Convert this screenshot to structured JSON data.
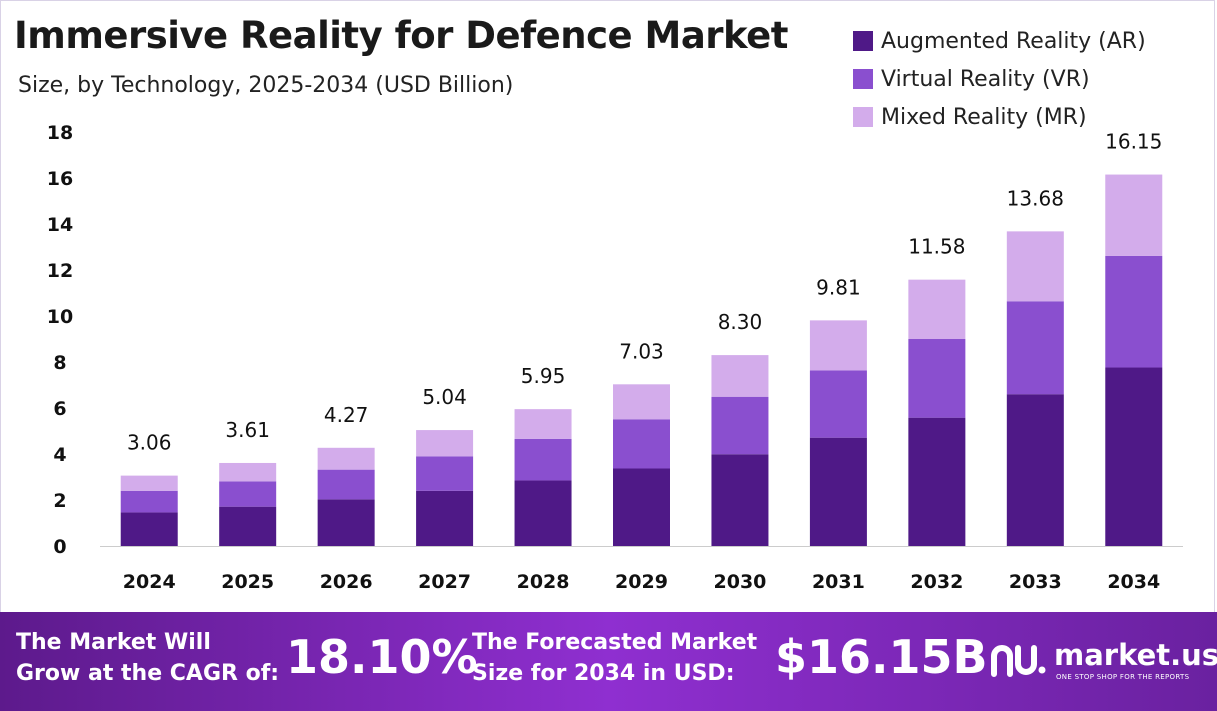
{
  "title": "Immersive Reality for Defence Market",
  "subtitle": "Size, by Technology, 2025-2034 (USD Billion)",
  "colors": {
    "ar": "#4f1987",
    "vr": "#8a4fcf",
    "mr": "#d3aceb",
    "footer_start": "#5d1a8c",
    "footer_end": "#8f2fd0"
  },
  "legend": [
    {
      "label": "Augmented Reality (AR)",
      "color": "#4f1987"
    },
    {
      "label": "Virtual Reality (VR)",
      "color": "#8a4fcf"
    },
    {
      "label": "Mixed Reality (MR)",
      "color": "#d3aceb"
    }
  ],
  "chart_data": {
    "type": "bar",
    "stacked": true,
    "categories": [
      "2024",
      "2025",
      "2026",
      "2027",
      "2028",
      "2029",
      "2030",
      "2031",
      "2032",
      "2033",
      "2034"
    ],
    "series": [
      {
        "name": "Augmented Reality (AR)",
        "values": [
          1.46,
          1.71,
          2.03,
          2.4,
          2.85,
          3.37,
          3.99,
          4.71,
          5.58,
          6.6,
          7.76
        ],
        "color": "#4f1987"
      },
      {
        "name": "Virtual Reality (VR)",
        "values": [
          0.94,
          1.1,
          1.29,
          1.5,
          1.81,
          2.14,
          2.5,
          2.92,
          3.42,
          4.04,
          4.85
        ],
        "color": "#8a4fcf"
      },
      {
        "name": "Mixed Reality (MR)",
        "values": [
          0.66,
          0.8,
          0.95,
          1.14,
          1.29,
          1.52,
          1.81,
          2.18,
          2.58,
          3.04,
          3.54
        ],
        "color": "#d3aceb"
      }
    ],
    "totals": [
      "3.06",
      "3.61",
      "4.27",
      "5.04",
      "5.95",
      "7.03",
      "8.30",
      "9.81",
      "11.58",
      "13.68",
      "16.15"
    ],
    "yticks": [
      "0",
      "2",
      "4",
      "6",
      "8",
      "10",
      "12",
      "14",
      "16",
      "18"
    ],
    "ylim": [
      0,
      18
    ],
    "grid": false,
    "legend_position": "top-right"
  },
  "footer": {
    "cagr_line1": "The Market Will",
    "cagr_line2": "Grow at the CAGR of:",
    "cagr_value": "18.10%",
    "forecast_line1": "The Forecasted Market",
    "forecast_line2": "Size for 2034 in USD:",
    "forecast_value": "$16.15B",
    "logo_text": "market.us",
    "logo_tagline": "ONE STOP SHOP FOR THE REPORTS"
  }
}
